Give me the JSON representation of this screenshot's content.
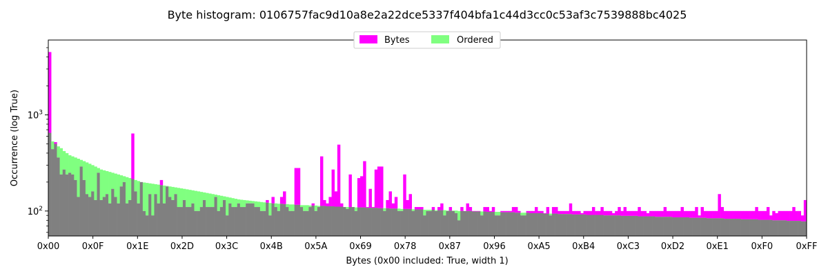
{
  "chart_data": {
    "type": "bar",
    "title": "Byte histogram: 0106757fac9d10a8e2a22dce5337f404bfa1c44d3cc0c53af3c7539888bc4025",
    "xlabel": "Bytes (0x00 included: True, width 1)",
    "ylabel": "Occurrence (log True)",
    "yscale": "log",
    "ylim": [
      55,
      6000
    ],
    "xlim": [
      0,
      255
    ],
    "xticks": [
      "0x00",
      "0x0F",
      "0x1E",
      "0x2D",
      "0x3C",
      "0x4B",
      "0x5A",
      "0x69",
      "0x78",
      "0x87",
      "0x96",
      "0xA5",
      "0xB4",
      "0xC3",
      "0xD2",
      "0xE1",
      "0xF0",
      "0xFF"
    ],
    "yticks": [
      "10^2",
      "10^3"
    ],
    "legend_position": "top-center",
    "colors": {
      "bytes": "#ff00ff",
      "ordered": "#80ff80",
      "overlap": "#808080"
    },
    "series": [
      {
        "name": "Bytes",
        "values": [
          4500,
          440,
          520,
          360,
          240,
          270,
          240,
          250,
          240,
          210,
          140,
          290,
          210,
          150,
          140,
          160,
          130,
          250,
          130,
          140,
          150,
          120,
          170,
          140,
          120,
          180,
          200,
          120,
          130,
          640,
          160,
          120,
          200,
          100,
          90,
          150,
          90,
          150,
          120,
          210,
          120,
          180,
          140,
          130,
          150,
          110,
          110,
          130,
          110,
          110,
          120,
          100,
          100,
          110,
          130,
          110,
          110,
          110,
          140,
          100,
          110,
          130,
          90,
          120,
          110,
          110,
          120,
          110,
          110,
          120,
          120,
          120,
          110,
          110,
          100,
          100,
          130,
          90,
          140,
          110,
          100,
          140,
          160,
          110,
          100,
          100,
          280,
          280,
          110,
          100,
          100,
          110,
          120,
          100,
          110,
          370,
          130,
          120,
          140,
          270,
          160,
          490,
          120,
          110,
          105,
          240,
          110,
          100,
          220,
          230,
          330,
          110,
          170,
          110,
          270,
          290,
          290,
          100,
          130,
          160,
          120,
          140,
          100,
          100,
          240,
          130,
          150,
          100,
          110,
          110,
          110,
          90,
          100,
          100,
          110,
          100,
          110,
          120,
          90,
          100,
          110,
          100,
          95,
          80,
          110,
          100,
          120,
          110,
          100,
          100,
          100,
          90,
          110,
          110,
          100,
          110,
          90,
          90,
          100,
          100,
          100,
          100,
          110,
          110,
          100,
          90,
          90,
          100,
          100,
          100,
          110,
          100,
          100,
          95,
          110,
          90,
          110,
          110,
          100,
          100,
          100,
          100,
          120,
          100,
          100,
          100,
          95,
          100,
          100,
          100,
          110,
          100,
          100,
          110,
          100,
          100,
          100,
          95,
          100,
          110,
          100,
          110,
          100,
          100,
          100,
          100,
          110,
          100,
          100,
          95,
          100,
          100,
          100,
          100,
          100,
          110,
          100,
          100,
          100,
          100,
          100,
          110,
          100,
          100,
          100,
          100,
          110,
          90,
          110,
          100,
          100,
          100,
          100,
          100,
          150,
          110,
          100,
          100,
          100,
          100,
          100,
          100,
          100,
          100,
          100,
          100,
          100,
          110,
          100,
          100,
          100,
          110,
          90,
          100,
          95,
          100,
          100,
          100,
          100,
          100,
          110,
          100,
          100,
          90,
          130
        ]
      },
      {
        "name": "Ordered",
        "values": [
          650,
          530,
          500,
          470,
          450,
          420,
          400,
          380,
          370,
          360,
          350,
          340,
          330,
          320,
          310,
          300,
          290,
          280,
          270,
          265,
          260,
          255,
          250,
          245,
          240,
          235,
          230,
          225,
          220,
          215,
          210,
          205,
          200,
          198,
          196,
          194,
          192,
          190,
          188,
          186,
          184,
          182,
          180,
          178,
          176,
          174,
          172,
          170,
          168,
          166,
          164,
          162,
          160,
          158,
          156,
          154,
          152,
          150,
          148,
          146,
          144,
          142,
          140,
          138,
          136,
          134,
          132,
          131,
          130,
          129,
          128,
          127,
          126,
          125,
          124,
          123,
          122,
          121,
          120,
          120,
          119,
          119,
          118,
          118,
          117,
          117,
          116,
          116,
          115,
          115,
          115,
          114,
          114,
          114,
          113,
          113,
          113,
          112,
          112,
          112,
          111,
          111,
          111,
          110,
          110,
          110,
          110,
          109,
          109,
          109,
          109,
          108,
          108,
          108,
          108,
          107,
          107,
          107,
          107,
          106,
          106,
          106,
          106,
          105,
          105,
          105,
          105,
          104,
          104,
          104,
          104,
          103,
          103,
          103,
          103,
          102,
          102,
          102,
          102,
          101,
          101,
          101,
          101,
          100,
          100,
          100,
          100,
          100,
          99,
          99,
          99,
          99,
          99,
          98,
          98,
          98,
          98,
          98,
          97,
          97,
          97,
          97,
          97,
          96,
          96,
          96,
          96,
          96,
          95,
          95,
          95,
          95,
          95,
          94,
          94,
          94,
          94,
          94,
          93,
          93,
          93,
          93,
          93,
          92,
          92,
          92,
          92,
          92,
          91,
          91,
          91,
          91,
          91,
          91,
          90,
          90,
          90,
          90,
          90,
          90,
          89,
          89,
          89,
          89,
          89,
          89,
          88,
          88,
          88,
          88,
          88,
          88,
          87,
          87,
          87,
          87,
          87,
          87,
          86,
          86,
          86,
          86,
          86,
          86,
          85,
          85,
          85,
          85,
          85,
          85,
          84,
          84,
          84,
          84,
          84,
          84,
          83,
          83,
          83,
          83,
          83,
          83,
          82,
          82,
          82,
          82,
          82,
          82,
          81,
          81,
          81,
          81,
          81,
          80,
          80,
          80,
          80,
          80,
          79,
          79,
          79,
          79,
          79,
          78,
          78,
          77,
          77,
          76,
          75,
          74,
          70
        ]
      }
    ]
  }
}
